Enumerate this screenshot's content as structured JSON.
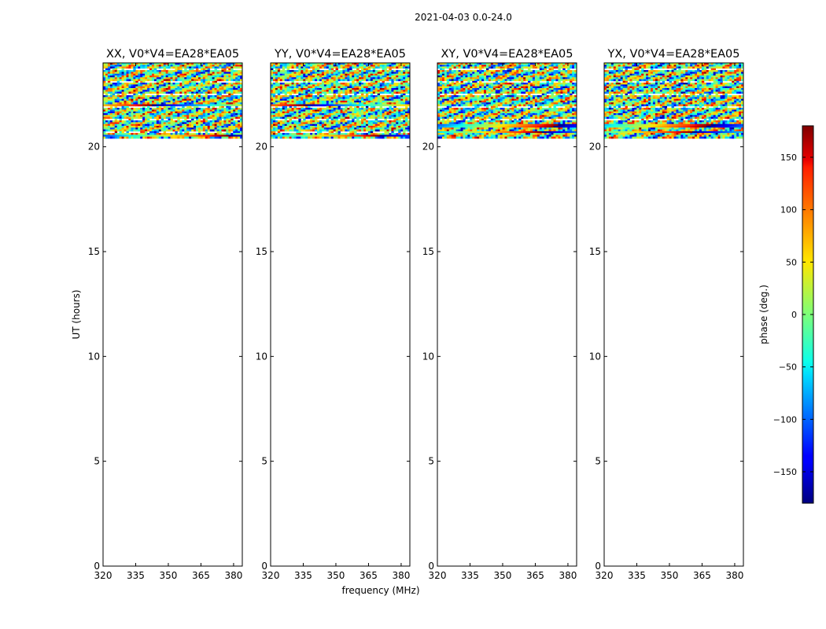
{
  "figure": {
    "suptitle": "2021-04-03 0.0-24.0"
  },
  "chart_data": {
    "type": "heatmap",
    "xlabel": "frequency (MHz)",
    "ylabel": "UT (hours)",
    "xlim": [
      320,
      384
    ],
    "ylim": [
      0,
      24
    ],
    "xticks": [
      320,
      335,
      350,
      365,
      380
    ],
    "yticks": [
      0,
      5,
      10,
      15,
      20
    ],
    "data_ut_range": [
      20.4,
      24.0
    ],
    "colormap": "jet",
    "panels": [
      {
        "title": "XX, V0*V4=EA28*EA05",
        "bright_rows": [
          21.95,
          20.55
        ]
      },
      {
        "title": "YY, V0*V4=EA28*EA05",
        "bright_rows": [
          21.95,
          20.55
        ]
      },
      {
        "title": "XY, V0*V4=EA28*EA05",
        "bright_rows": [
          21.0,
          20.7
        ]
      },
      {
        "title": "YX, V0*V4=EA28*EA05",
        "bright_rows": [
          21.0,
          20.7
        ]
      }
    ],
    "colorbar": {
      "label": "phase (deg.)",
      "range": [
        -180,
        180
      ],
      "ticks": [
        150,
        100,
        50,
        0,
        -50,
        -100,
        -150
      ],
      "tick_labels": [
        "150",
        "100",
        "50",
        "0",
        "−50",
        "−100",
        "−150"
      ]
    }
  }
}
